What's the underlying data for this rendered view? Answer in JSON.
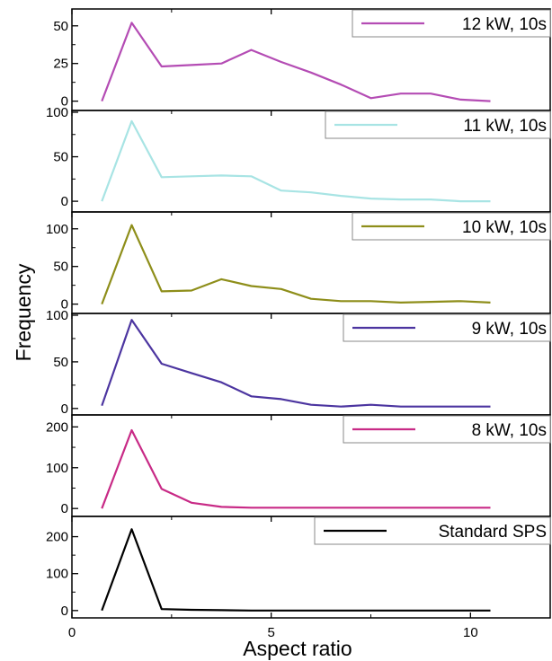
{
  "chart_data": {
    "type": "line",
    "layout": "stacked-panels",
    "xlabel": "Aspect ratio",
    "ylabel": "Frequency",
    "xlim": [
      0,
      12
    ],
    "xticks": [
      0,
      5,
      10
    ],
    "x": [
      0.75,
      1.5,
      2.25,
      3.0,
      3.75,
      4.5,
      5.25,
      6.0,
      6.75,
      7.5,
      8.25,
      9.0,
      9.75,
      10.5
    ],
    "panels": [
      {
        "name": "12 kW, 10s",
        "color": "#b44cb4",
        "ylim": [
          -5,
          60
        ],
        "yticks": [
          0,
          25,
          50
        ],
        "values": [
          0,
          52,
          23,
          24,
          25,
          34,
          26,
          19,
          11,
          2,
          5,
          5,
          1,
          0
        ]
      },
      {
        "name": "11 kW, 10s",
        "color": "#a8e4e4",
        "ylim": [
          -10,
          100
        ],
        "yticks": [
          0,
          50,
          100
        ],
        "values": [
          0,
          90,
          27,
          28,
          29,
          28,
          12,
          10,
          6,
          3,
          2,
          2,
          0,
          0
        ]
      },
      {
        "name": "10 kW, 10s",
        "color": "#8e8e1a",
        "ylim": [
          -10,
          120
        ],
        "yticks": [
          0,
          50,
          100
        ],
        "values": [
          0,
          105,
          17,
          18,
          33,
          24,
          20,
          7,
          4,
          4,
          2,
          3,
          4,
          2
        ]
      },
      {
        "name": "9 kW, 10s",
        "color": "#4c35a0",
        "ylim": [
          -5,
          100
        ],
        "yticks": [
          0,
          50,
          100
        ],
        "values": [
          3,
          95,
          48,
          38,
          28,
          13,
          10,
          4,
          2,
          4,
          2,
          2,
          2,
          2
        ]
      },
      {
        "name": "8 kW, 10s",
        "color": "#c82a86",
        "ylim": [
          -15,
          225
        ],
        "yticks": [
          0,
          100,
          200
        ],
        "values": [
          0,
          192,
          48,
          14,
          4,
          2,
          2,
          2,
          2,
          2,
          2,
          2,
          2,
          2
        ]
      },
      {
        "name": "Standard SPS",
        "color": "#000000",
        "ylim": [
          -15,
          250
        ],
        "yticks": [
          0,
          100,
          200
        ],
        "values": [
          0,
          220,
          4,
          2,
          1,
          0,
          0,
          0,
          0,
          0,
          0,
          0,
          0,
          0
        ]
      }
    ]
  }
}
